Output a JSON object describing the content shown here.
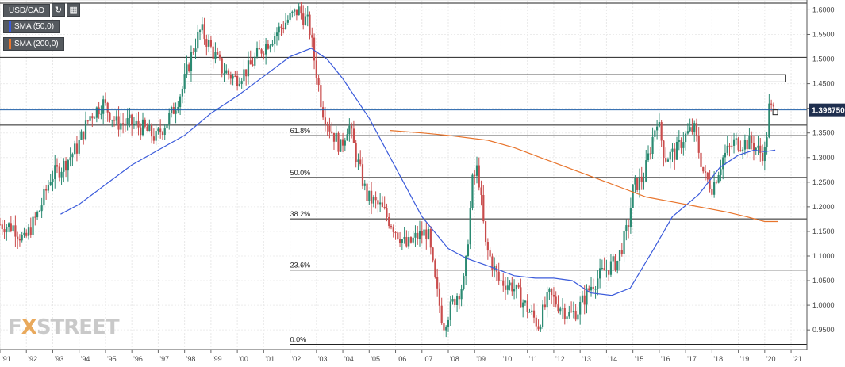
{
  "symbol": {
    "label": "USD/CAD"
  },
  "toolbar": {
    "refresh_icon": "refresh-icon",
    "calendar_icon": "calendar-icon"
  },
  "indicators": [
    {
      "label": "SMA (50,0)",
      "color": "#3b5bdb"
    },
    {
      "label": "SMA (200,0)",
      "color": "#e8742c"
    }
  ],
  "logo": {
    "prefix": "FX",
    "x": "X",
    "suffix": "STREET"
  },
  "colors": {
    "up": "#2b8a72",
    "down": "#c94c4c",
    "sma50": "#3b5bdb",
    "sma200": "#e8742c",
    "price_line": "#1f5fa8"
  },
  "chart_data": {
    "type": "candlestick",
    "title": "USD/CAD",
    "ylim": [
      0.91,
      1.62
    ],
    "xlim": [
      1991.0,
      2021.6
    ],
    "x_ticks": [
      {
        "label": "'91",
        "value": 1991
      },
      {
        "label": "'92",
        "value": 1992
      },
      {
        "label": "'93",
        "value": 1993
      },
      {
        "label": "'94",
        "value": 1994
      },
      {
        "label": "'95",
        "value": 1995
      },
      {
        "label": "'96",
        "value": 1996
      },
      {
        "label": "'97",
        "value": 1997
      },
      {
        "label": "'98",
        "value": 1998
      },
      {
        "label": "'99",
        "value": 1999
      },
      {
        "label": "'00",
        "value": 2000
      },
      {
        "label": "'01",
        "value": 2001
      },
      {
        "label": "'02",
        "value": 2002
      },
      {
        "label": "'03",
        "value": 2003
      },
      {
        "label": "'04",
        "value": 2004
      },
      {
        "label": "'05",
        "value": 2005
      },
      {
        "label": "'06",
        "value": 2006
      },
      {
        "label": "'07",
        "value": 2007
      },
      {
        "label": "'08",
        "value": 2008
      },
      {
        "label": "'09",
        "value": 2009
      },
      {
        "label": "'10",
        "value": 2010
      },
      {
        "label": "'11",
        "value": 2011
      },
      {
        "label": "'12",
        "value": 2012
      },
      {
        "label": "'13",
        "value": 2013
      },
      {
        "label": "'14",
        "value": 2014
      },
      {
        "label": "'15",
        "value": 2015
      },
      {
        "label": "'16",
        "value": 2016
      },
      {
        "label": "'17",
        "value": 2017
      },
      {
        "label": "'18",
        "value": 2018
      },
      {
        "label": "'19",
        "value": 2019
      },
      {
        "label": "'20",
        "value": 2020
      },
      {
        "label": "'21",
        "value": 2021
      }
    ],
    "y_ticks": [
      {
        "label": "0.9500",
        "value": 0.95
      },
      {
        "label": "1.0000",
        "value": 1.0
      },
      {
        "label": "1.0500",
        "value": 1.05
      },
      {
        "label": "1.1000",
        "value": 1.1
      },
      {
        "label": "1.1500",
        "value": 1.15
      },
      {
        "label": "1.2000",
        "value": 1.2
      },
      {
        "label": "1.2500",
        "value": 1.25
      },
      {
        "label": "1.3000",
        "value": 1.3
      },
      {
        "label": "1.3500",
        "value": 1.35
      },
      {
        "label": "1.4000",
        "value": 1.4
      },
      {
        "label": "1.4500",
        "value": 1.45
      },
      {
        "label": "1.5000",
        "value": 1.5
      },
      {
        "label": "1.5500",
        "value": 1.55
      },
      {
        "label": "1.6000",
        "value": 1.6
      }
    ],
    "current_price": {
      "label": "1.396750",
      "value": 1.39675
    },
    "horizontal_levels": [
      1.6135,
      1.5035,
      1.3658
    ],
    "fib_levels": [
      {
        "label": "61.8%",
        "value": 1.3445
      },
      {
        "label": "50.0%",
        "value": 1.2595
      },
      {
        "label": "38.2%",
        "value": 1.1755
      },
      {
        "label": "23.6%",
        "value": 1.0715
      },
      {
        "label": "0.0%",
        "value": 0.9205
      }
    ],
    "resistance_zone": {
      "x_start": 1998.0,
      "x_end": 2020.8,
      "y_low": 1.4535,
      "y_high": 1.4685
    },
    "key_points": [
      [
        1991.0,
        1.165
      ],
      [
        1991.6,
        1.16
      ],
      [
        1992.0,
        1.13
      ],
      [
        1992.6,
        1.195
      ],
      [
        1993.0,
        1.26
      ],
      [
        1993.5,
        1.285
      ],
      [
        1994.0,
        1.32
      ],
      [
        1994.5,
        1.385
      ],
      [
        1995.0,
        1.41
      ],
      [
        1995.5,
        1.37
      ],
      [
        1996.0,
        1.37
      ],
      [
        1996.5,
        1.36
      ],
      [
        1997.0,
        1.34
      ],
      [
        1997.6,
        1.39
      ],
      [
        1998.0,
        1.44
      ],
      [
        1998.4,
        1.52
      ],
      [
        1998.7,
        1.56
      ],
      [
        1999.0,
        1.53
      ],
      [
        1999.5,
        1.48
      ],
      [
        2000.0,
        1.46
      ],
      [
        2000.5,
        1.48
      ],
      [
        2001.0,
        1.52
      ],
      [
        2001.5,
        1.55
      ],
      [
        2002.0,
        1.58
      ],
      [
        2002.4,
        1.6
      ],
      [
        2002.8,
        1.57
      ],
      [
        2003.0,
        1.5
      ],
      [
        2003.3,
        1.4
      ],
      [
        2003.6,
        1.36
      ],
      [
        2004.0,
        1.32
      ],
      [
        2004.3,
        1.37
      ],
      [
        2004.6,
        1.3
      ],
      [
        2005.0,
        1.22
      ],
      [
        2005.5,
        1.2
      ],
      [
        2006.0,
        1.16
      ],
      [
        2006.5,
        1.12
      ],
      [
        2006.9,
        1.14
      ],
      [
        2007.3,
        1.15
      ],
      [
        2007.6,
        1.04
      ],
      [
        2007.9,
        0.96
      ],
      [
        2008.3,
        1.01
      ],
      [
        2008.7,
        1.05
      ],
      [
        2009.0,
        1.25
      ],
      [
        2009.2,
        1.28
      ],
      [
        2009.5,
        1.12
      ],
      [
        2010.0,
        1.05
      ],
      [
        2010.5,
        1.04
      ],
      [
        2011.0,
        1.0
      ],
      [
        2011.5,
        0.96
      ],
      [
        2011.9,
        1.02
      ],
      [
        2012.3,
        1.0
      ],
      [
        2012.7,
        0.98
      ],
      [
        2013.0,
        0.99
      ],
      [
        2013.5,
        1.04
      ],
      [
        2014.0,
        1.07
      ],
      [
        2014.5,
        1.09
      ],
      [
        2014.9,
        1.16
      ],
      [
        2015.1,
        1.24
      ],
      [
        2015.5,
        1.26
      ],
      [
        2016.0,
        1.38
      ],
      [
        2016.3,
        1.3
      ],
      [
        2016.7,
        1.31
      ],
      [
        2017.0,
        1.34
      ],
      [
        2017.4,
        1.36
      ],
      [
        2017.8,
        1.26
      ],
      [
        2018.1,
        1.24
      ],
      [
        2018.5,
        1.3
      ],
      [
        2018.9,
        1.33
      ],
      [
        2019.2,
        1.33
      ],
      [
        2019.6,
        1.33
      ],
      [
        2019.9,
        1.31
      ],
      [
        2020.1,
        1.31
      ],
      [
        2020.25,
        1.4
      ],
      [
        2020.4,
        1.395
      ]
    ],
    "sma50_points": [
      [
        1993.3,
        1.185
      ],
      [
        1994.0,
        1.205
      ],
      [
        1995.0,
        1.245
      ],
      [
        1996.0,
        1.285
      ],
      [
        1997.0,
        1.315
      ],
      [
        1998.0,
        1.345
      ],
      [
        1999.0,
        1.39
      ],
      [
        2000.0,
        1.425
      ],
      [
        2001.0,
        1.465
      ],
      [
        2002.0,
        1.505
      ],
      [
        2002.8,
        1.522
      ],
      [
        2003.4,
        1.5
      ],
      [
        2004.0,
        1.46
      ],
      [
        2005.0,
        1.38
      ],
      [
        2006.0,
        1.28
      ],
      [
        2007.0,
        1.18
      ],
      [
        2008.0,
        1.115
      ],
      [
        2008.7,
        1.095
      ],
      [
        2009.5,
        1.08
      ],
      [
        2010.5,
        1.06
      ],
      [
        2011.3,
        1.055
      ],
      [
        2012.0,
        1.055
      ],
      [
        2012.7,
        1.05
      ],
      [
        2013.4,
        1.025
      ],
      [
        2014.2,
        1.02
      ],
      [
        2014.9,
        1.035
      ],
      [
        2015.8,
        1.115
      ],
      [
        2016.5,
        1.18
      ],
      [
        2017.5,
        1.225
      ],
      [
        2018.3,
        1.28
      ],
      [
        2019.0,
        1.305
      ],
      [
        2019.6,
        1.315
      ],
      [
        2020.0,
        1.312
      ],
      [
        2020.4,
        1.315
      ]
    ],
    "sma200_points": [
      [
        2005.8,
        1.355
      ],
      [
        2007.0,
        1.35
      ],
      [
        2008.0,
        1.345
      ],
      [
        2009.5,
        1.335
      ],
      [
        2010.5,
        1.32
      ],
      [
        2011.5,
        1.3
      ],
      [
        2012.5,
        1.28
      ],
      [
        2013.5,
        1.26
      ],
      [
        2014.5,
        1.24
      ],
      [
        2015.5,
        1.22
      ],
      [
        2016.5,
        1.21
      ],
      [
        2017.5,
        1.2
      ],
      [
        2018.5,
        1.19
      ],
      [
        2019.3,
        1.18
      ],
      [
        2020.0,
        1.17
      ],
      [
        2020.5,
        1.17
      ]
    ]
  }
}
